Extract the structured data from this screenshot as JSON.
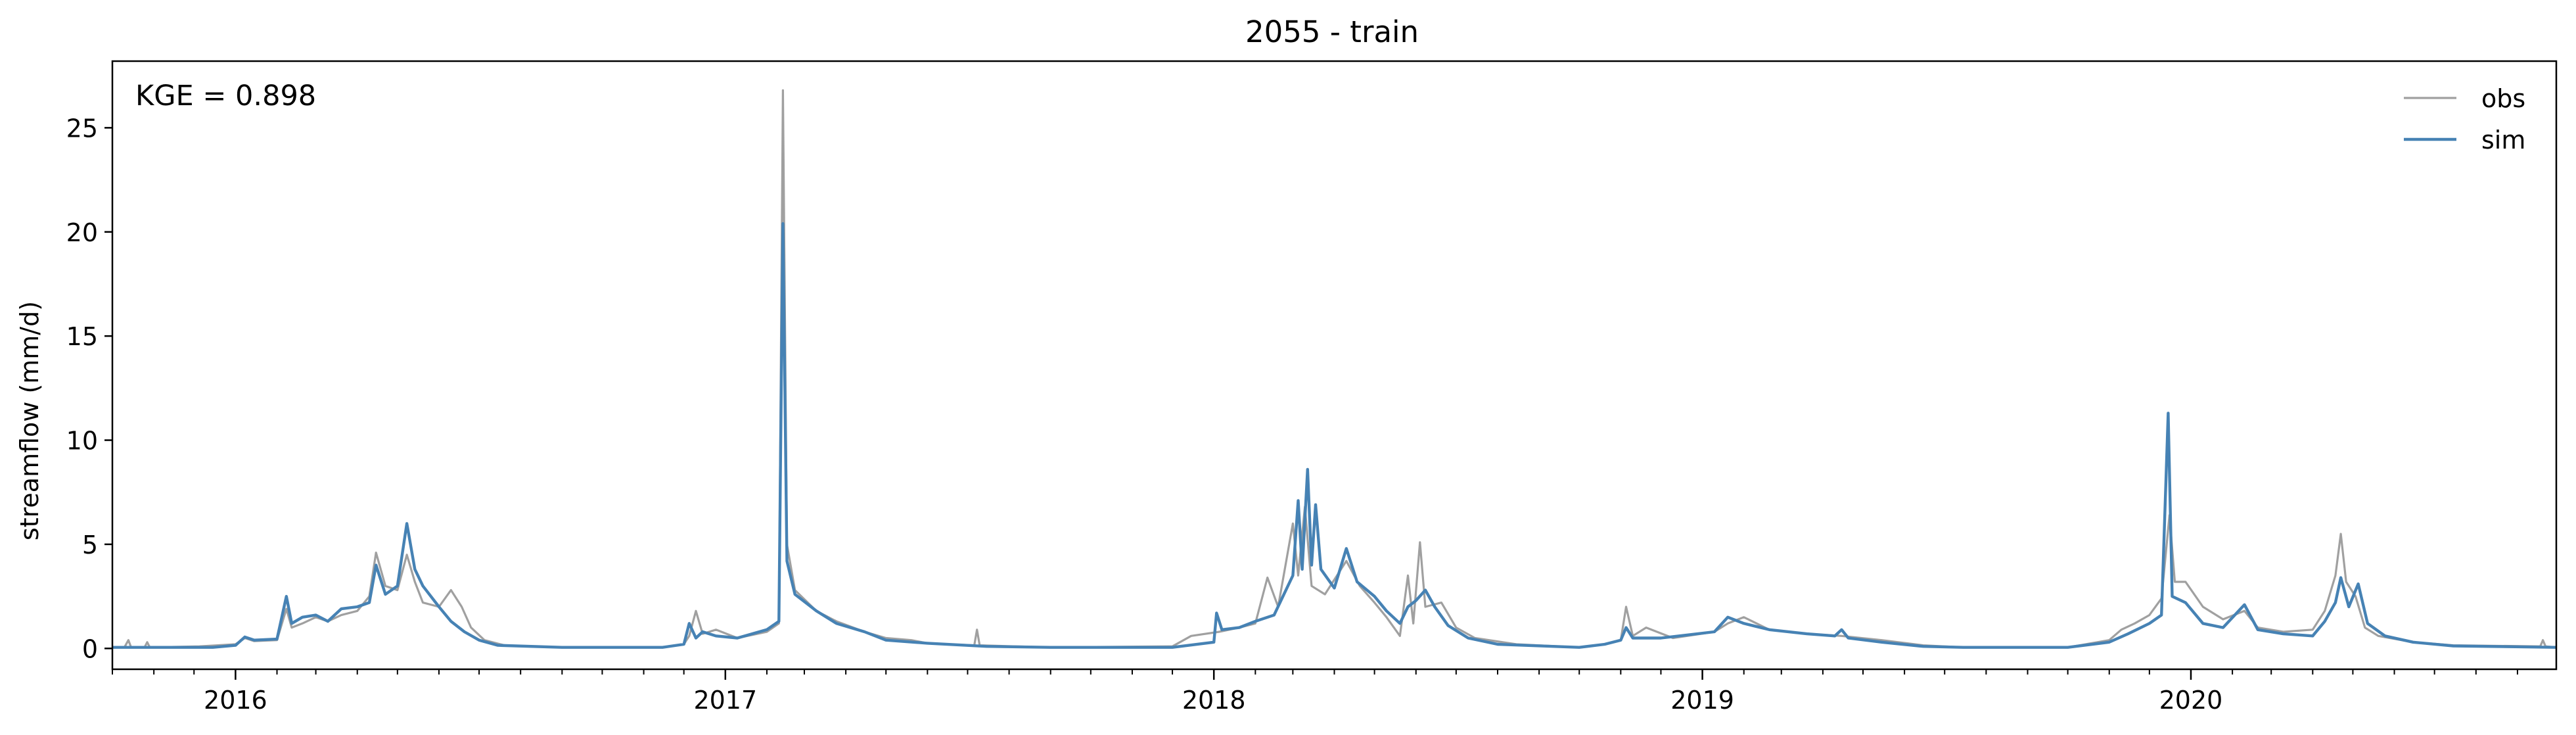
{
  "chart_data": {
    "type": "line",
    "title": "2055 - train",
    "xlabel": "",
    "ylabel": "streamflow (mm/d)",
    "annotation": "KGE = 0.898",
    "xlim": [
      "2015-10-01",
      "2020-09-30"
    ],
    "ylim": [
      -1.0,
      28.2
    ],
    "x_ticks": [
      "2016",
      "2017",
      "2018",
      "2019",
      "2020"
    ],
    "y_ticks": [
      "0",
      "5",
      "10",
      "15",
      "20",
      "25"
    ],
    "legend": {
      "position": "top-right",
      "entries": [
        "obs",
        "sim"
      ]
    },
    "grid": false,
    "series": [
      {
        "name": "obs",
        "color": "#a0a0a0",
        "points": [
          [
            "2015-10-01",
            0.05
          ],
          [
            "2015-10-10",
            0.05
          ],
          [
            "2015-10-13",
            0.4
          ],
          [
            "2015-10-15",
            0.05
          ],
          [
            "2015-10-25",
            0.05
          ],
          [
            "2015-10-27",
            0.3
          ],
          [
            "2015-10-29",
            0.05
          ],
          [
            "2015-12-05",
            0.1
          ],
          [
            "2016-01-01",
            0.2
          ],
          [
            "2016-01-08",
            0.5
          ],
          [
            "2016-01-15",
            0.35
          ],
          [
            "2016-02-01",
            0.4
          ],
          [
            "2016-02-08",
            1.9
          ],
          [
            "2016-02-12",
            1.0
          ],
          [
            "2016-02-20",
            1.2
          ],
          [
            "2016-03-01",
            1.5
          ],
          [
            "2016-03-10",
            1.3
          ],
          [
            "2016-03-20",
            1.6
          ],
          [
            "2016-04-01",
            1.8
          ],
          [
            "2016-04-10",
            2.5
          ],
          [
            "2016-04-15",
            4.6
          ],
          [
            "2016-04-22",
            3.0
          ],
          [
            "2016-05-01",
            2.8
          ],
          [
            "2016-05-08",
            4.5
          ],
          [
            "2016-05-14",
            3.2
          ],
          [
            "2016-05-20",
            2.2
          ],
          [
            "2016-06-01",
            2.0
          ],
          [
            "2016-06-10",
            2.8
          ],
          [
            "2016-06-18",
            2.0
          ],
          [
            "2016-06-25",
            1.0
          ],
          [
            "2016-07-05",
            0.4
          ],
          [
            "2016-07-20",
            0.15
          ],
          [
            "2016-09-01",
            0.05
          ],
          [
            "2016-11-15",
            0.05
          ],
          [
            "2016-12-01",
            0.2
          ],
          [
            "2016-12-05",
            0.6
          ],
          [
            "2016-12-10",
            1.8
          ],
          [
            "2016-12-15",
            0.7
          ],
          [
            "2016-12-25",
            0.9
          ],
          [
            "2017-01-10",
            0.5
          ],
          [
            "2017-02-01",
            0.8
          ],
          [
            "2017-02-10",
            1.2
          ],
          [
            "2017-02-13",
            26.8
          ],
          [
            "2017-02-16",
            5.0
          ],
          [
            "2017-02-22",
            2.8
          ],
          [
            "2017-03-10",
            1.8
          ],
          [
            "2017-03-25",
            1.3
          ],
          [
            "2017-04-15",
            0.8
          ],
          [
            "2017-05-01",
            0.5
          ],
          [
            "2017-05-20",
            0.4
          ],
          [
            "2017-06-01",
            0.25
          ],
          [
            "2017-06-15",
            0.2
          ],
          [
            "2017-07-06",
            0.15
          ],
          [
            "2017-07-08",
            0.9
          ],
          [
            "2017-07-10",
            0.15
          ],
          [
            "2017-09-01",
            0.05
          ],
          [
            "2017-12-01",
            0.1
          ],
          [
            "2017-12-15",
            0.6
          ],
          [
            "2018-01-05",
            0.8
          ],
          [
            "2018-01-20",
            1.0
          ],
          [
            "2018-02-01",
            1.2
          ],
          [
            "2018-02-10",
            3.4
          ],
          [
            "2018-02-18",
            2.0
          ],
          [
            "2018-03-01",
            6.0
          ],
          [
            "2018-03-05",
            3.5
          ],
          [
            "2018-03-10",
            6.8
          ],
          [
            "2018-03-15",
            3.0
          ],
          [
            "2018-03-25",
            2.6
          ],
          [
            "2018-04-10",
            4.2
          ],
          [
            "2018-04-20",
            3.0
          ],
          [
            "2018-05-01",
            2.2
          ],
          [
            "2018-05-10",
            1.5
          ],
          [
            "2018-05-20",
            0.6
          ],
          [
            "2018-05-26",
            3.5
          ],
          [
            "2018-05-30",
            1.2
          ],
          [
            "2018-06-04",
            5.1
          ],
          [
            "2018-06-08",
            2.0
          ],
          [
            "2018-06-20",
            2.2
          ],
          [
            "2018-07-01",
            1.0
          ],
          [
            "2018-07-15",
            0.5
          ],
          [
            "2018-08-15",
            0.2
          ],
          [
            "2018-10-01",
            0.05
          ],
          [
            "2018-10-20",
            0.2
          ],
          [
            "2018-11-01",
            0.4
          ],
          [
            "2018-11-05",
            2.0
          ],
          [
            "2018-11-10",
            0.6
          ],
          [
            "2018-11-20",
            1.0
          ],
          [
            "2018-12-10",
            0.5
          ],
          [
            "2019-01-10",
            0.8
          ],
          [
            "2019-01-20",
            1.2
          ],
          [
            "2019-02-01",
            1.5
          ],
          [
            "2019-02-20",
            0.9
          ],
          [
            "2019-03-20",
            0.7
          ],
          [
            "2019-04-15",
            0.6
          ],
          [
            "2019-05-15",
            0.4
          ],
          [
            "2019-06-15",
            0.15
          ],
          [
            "2019-07-15",
            0.05
          ],
          [
            "2019-10-01",
            0.05
          ],
          [
            "2019-11-01",
            0.4
          ],
          [
            "2019-11-10",
            0.9
          ],
          [
            "2019-11-20",
            1.2
          ],
          [
            "2019-12-01",
            1.6
          ],
          [
            "2019-12-10",
            2.4
          ],
          [
            "2019-12-16",
            6.4
          ],
          [
            "2019-12-20",
            3.2
          ],
          [
            "2019-12-28",
            3.2
          ],
          [
            "2020-01-10",
            2.0
          ],
          [
            "2020-01-25",
            1.4
          ],
          [
            "2020-02-10",
            1.8
          ],
          [
            "2020-02-20",
            1.0
          ],
          [
            "2020-03-10",
            0.8
          ],
          [
            "2020-04-01",
            0.9
          ],
          [
            "2020-04-10",
            1.8
          ],
          [
            "2020-04-18",
            3.5
          ],
          [
            "2020-04-22",
            5.5
          ],
          [
            "2020-04-26",
            3.2
          ],
          [
            "2020-05-03",
            2.5
          ],
          [
            "2020-05-10",
            1.0
          ],
          [
            "2020-05-20",
            0.6
          ],
          [
            "2020-06-15",
            0.3
          ],
          [
            "2020-07-15",
            0.15
          ],
          [
            "2020-09-18",
            0.1
          ],
          [
            "2020-09-20",
            0.4
          ],
          [
            "2020-09-22",
            0.1
          ],
          [
            "2020-09-30",
            0.05
          ]
        ]
      },
      {
        "name": "sim",
        "color": "#4682b4",
        "points": [
          [
            "2015-10-01",
            0.05
          ],
          [
            "2015-12-15",
            0.05
          ],
          [
            "2016-01-01",
            0.15
          ],
          [
            "2016-01-08",
            0.55
          ],
          [
            "2016-01-15",
            0.4
          ],
          [
            "2016-02-01",
            0.45
          ],
          [
            "2016-02-08",
            2.5
          ],
          [
            "2016-02-12",
            1.2
          ],
          [
            "2016-02-20",
            1.5
          ],
          [
            "2016-03-01",
            1.6
          ],
          [
            "2016-03-10",
            1.3
          ],
          [
            "2016-03-20",
            1.9
          ],
          [
            "2016-04-01",
            2.0
          ],
          [
            "2016-04-10",
            2.2
          ],
          [
            "2016-04-15",
            4.0
          ],
          [
            "2016-04-22",
            2.6
          ],
          [
            "2016-05-01",
            3.0
          ],
          [
            "2016-05-08",
            6.0
          ],
          [
            "2016-05-14",
            3.8
          ],
          [
            "2016-05-20",
            3.0
          ],
          [
            "2016-06-01",
            2.0
          ],
          [
            "2016-06-10",
            1.3
          ],
          [
            "2016-06-20",
            0.8
          ],
          [
            "2016-07-01",
            0.4
          ],
          [
            "2016-07-15",
            0.15
          ],
          [
            "2016-09-01",
            0.05
          ],
          [
            "2016-11-15",
            0.05
          ],
          [
            "2016-12-01",
            0.2
          ],
          [
            "2016-12-05",
            1.2
          ],
          [
            "2016-12-10",
            0.5
          ],
          [
            "2016-12-15",
            0.8
          ],
          [
            "2016-12-25",
            0.6
          ],
          [
            "2017-01-10",
            0.5
          ],
          [
            "2017-02-01",
            0.9
          ],
          [
            "2017-02-10",
            1.3
          ],
          [
            "2017-02-13",
            20.4
          ],
          [
            "2017-02-16",
            4.2
          ],
          [
            "2017-02-22",
            2.6
          ],
          [
            "2017-03-10",
            1.8
          ],
          [
            "2017-03-25",
            1.2
          ],
          [
            "2017-04-15",
            0.8
          ],
          [
            "2017-05-01",
            0.4
          ],
          [
            "2017-06-01",
            0.25
          ],
          [
            "2017-07-15",
            0.1
          ],
          [
            "2017-09-01",
            0.05
          ],
          [
            "2017-12-01",
            0.05
          ],
          [
            "2018-01-01",
            0.3
          ],
          [
            "2018-01-03",
            1.7
          ],
          [
            "2018-01-07",
            0.9
          ],
          [
            "2018-01-20",
            1.0
          ],
          [
            "2018-02-01",
            1.3
          ],
          [
            "2018-02-15",
            1.6
          ],
          [
            "2018-03-01",
            3.5
          ],
          [
            "2018-03-05",
            7.1
          ],
          [
            "2018-03-08",
            3.8
          ],
          [
            "2018-03-12",
            8.6
          ],
          [
            "2018-03-15",
            4.0
          ],
          [
            "2018-03-18",
            6.9
          ],
          [
            "2018-03-22",
            3.8
          ],
          [
            "2018-04-01",
            2.9
          ],
          [
            "2018-04-10",
            4.8
          ],
          [
            "2018-04-18",
            3.2
          ],
          [
            "2018-05-01",
            2.5
          ],
          [
            "2018-05-10",
            1.8
          ],
          [
            "2018-05-20",
            1.2
          ],
          [
            "2018-05-26",
            2.0
          ],
          [
            "2018-06-01",
            2.3
          ],
          [
            "2018-06-08",
            2.8
          ],
          [
            "2018-06-15",
            2.0
          ],
          [
            "2018-06-25",
            1.1
          ],
          [
            "2018-07-10",
            0.5
          ],
          [
            "2018-08-01",
            0.2
          ],
          [
            "2018-10-01",
            0.05
          ],
          [
            "2018-10-20",
            0.2
          ],
          [
            "2018-11-01",
            0.4
          ],
          [
            "2018-11-05",
            1.0
          ],
          [
            "2018-11-10",
            0.5
          ],
          [
            "2018-12-01",
            0.5
          ],
          [
            "2019-01-10",
            0.8
          ],
          [
            "2019-01-20",
            1.5
          ],
          [
            "2019-02-01",
            1.2
          ],
          [
            "2019-02-20",
            0.9
          ],
          [
            "2019-03-20",
            0.7
          ],
          [
            "2019-04-10",
            0.6
          ],
          [
            "2019-04-15",
            0.9
          ],
          [
            "2019-04-20",
            0.5
          ],
          [
            "2019-05-15",
            0.3
          ],
          [
            "2019-06-15",
            0.1
          ],
          [
            "2019-07-15",
            0.05
          ],
          [
            "2019-10-01",
            0.05
          ],
          [
            "2019-11-01",
            0.3
          ],
          [
            "2019-11-15",
            0.7
          ],
          [
            "2019-12-01",
            1.2
          ],
          [
            "2019-12-10",
            1.6
          ],
          [
            "2019-12-15",
            11.3
          ],
          [
            "2019-12-18",
            2.5
          ],
          [
            "2019-12-28",
            2.2
          ],
          [
            "2020-01-10",
            1.2
          ],
          [
            "2020-01-25",
            1.0
          ],
          [
            "2020-02-10",
            2.1
          ],
          [
            "2020-02-20",
            0.9
          ],
          [
            "2020-03-10",
            0.7
          ],
          [
            "2020-04-01",
            0.6
          ],
          [
            "2020-04-10",
            1.3
          ],
          [
            "2020-04-18",
            2.2
          ],
          [
            "2020-04-22",
            3.4
          ],
          [
            "2020-04-28",
            2.0
          ],
          [
            "2020-05-05",
            3.1
          ],
          [
            "2020-05-12",
            1.2
          ],
          [
            "2020-05-25",
            0.6
          ],
          [
            "2020-06-15",
            0.3
          ],
          [
            "2020-07-15",
            0.12
          ],
          [
            "2020-09-30",
            0.05
          ]
        ]
      }
    ]
  }
}
